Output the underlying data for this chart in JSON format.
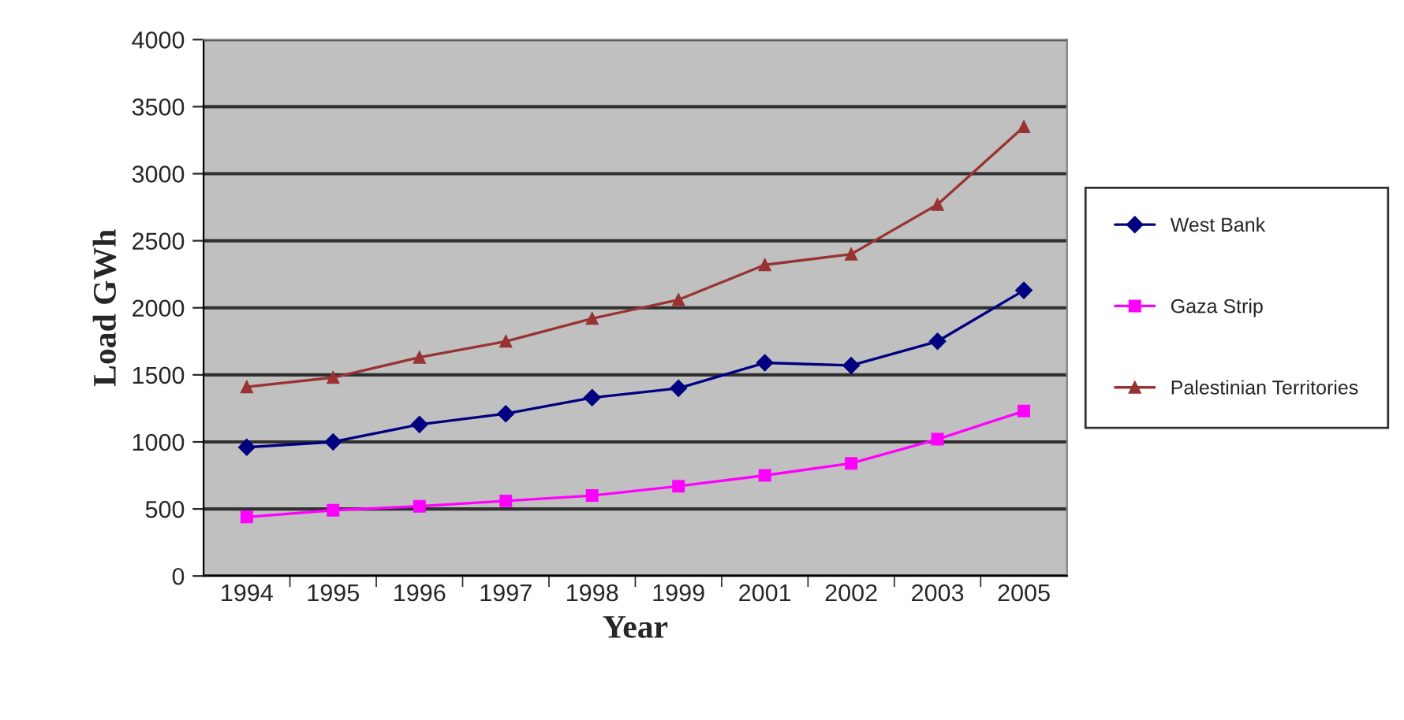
{
  "chart_data": {
    "type": "line",
    "xlabel": "Year",
    "ylabel": "Load GWh",
    "categories": [
      "1994",
      "1995",
      "1996",
      "1997",
      "1998",
      "1999",
      "2001",
      "2002",
      "2003",
      "2005"
    ],
    "series": [
      {
        "name": "West Bank",
        "color": "#000080",
        "marker": "diamond",
        "values": [
          960,
          1000,
          1130,
          1210,
          1330,
          1400,
          1590,
          1570,
          1750,
          2130
        ]
      },
      {
        "name": "Gaza Strip",
        "color": "#ff00ff",
        "marker": "square",
        "values": [
          440,
          490,
          520,
          560,
          600,
          670,
          750,
          840,
          1020,
          1230
        ]
      },
      {
        "name": "Palestinian Territories",
        "color": "#993333",
        "marker": "triangle",
        "values": [
          1410,
          1480,
          1630,
          1750,
          1920,
          2060,
          2320,
          2400,
          2770,
          3350
        ]
      }
    ],
    "ylim": [
      0,
      4000
    ],
    "yticks": [
      0,
      500,
      1000,
      1500,
      2000,
      2500,
      3000,
      3500,
      4000
    ],
    "grid": "y",
    "legend": "right"
  }
}
